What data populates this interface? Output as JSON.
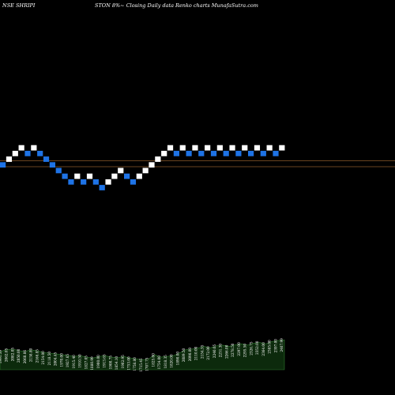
{
  "header": {
    "left": "NSE SHRIPI",
    "right": "STON  8%~  Closing Daily data Renko  charts MunafaSutra.com"
  },
  "colors": {
    "background": "#000000",
    "up_brick": "#ffffff",
    "down_brick": "#1e73e6",
    "reference_line": "#8b5a2b",
    "volume_fill": "#0c2a0c",
    "volume_edge": "#2f7a2f"
  },
  "chart_data": {
    "type": "renko",
    "title": "NSE SHRIPISTON 8%~ Closing Daily data Renko charts MunafaSutra.com",
    "brick_levels": [
      1,
      2,
      3,
      4,
      3,
      4,
      3,
      2,
      1,
      0,
      -1,
      -2,
      -1,
      -2,
      -1,
      -2,
      -3,
      -2,
      -1,
      0,
      -1,
      -2,
      -1,
      0,
      1,
      2,
      3,
      4,
      3,
      4,
      3,
      4,
      3,
      4,
      3,
      4,
      3,
      4,
      3,
      4,
      3,
      4,
      3,
      4,
      3,
      4
    ],
    "brick_directions": [
      "down",
      "up",
      "up",
      "up",
      "down",
      "up",
      "down",
      "down",
      "down",
      "down",
      "down",
      "down",
      "up",
      "down",
      "up",
      "down",
      "down",
      "up",
      "up",
      "up",
      "down",
      "down",
      "up",
      "up",
      "up",
      "up",
      "up",
      "up",
      "down",
      "up",
      "down",
      "up",
      "down",
      "up",
      "down",
      "up",
      "down",
      "up",
      "down",
      "up",
      "down",
      "up",
      "down",
      "up",
      "down",
      "up"
    ],
    "reference_lines": [
      203,
      211
    ],
    "volume_labels": [
      "1991.39",
      "2062.05",
      "2082.05",
      "2050.00",
      "2060.06",
      "2158.80",
      "2166.85",
      "2154.00",
      "2118.50",
      "2004.45",
      "1970.00",
      "1927.65",
      "1915.40",
      "1910.50",
      "1827.05",
      "1880.99",
      "1900.00",
      "1913.65",
      "1900.75",
      "1854.10",
      "1902.95",
      "1753.00",
      "1758.80",
      "1715.45",
      "1707.75",
      "1825.00",
      "1754.00",
      "1818.35",
      "1820.00",
      "1890.00",
      "2089.50",
      "2090.00",
      "2110.00",
      "2154.55",
      "2172.00",
      "2240.05",
      "2251.30",
      "2266.00",
      "2278.50",
      "2297.00",
      "2295.50",
      "2326.75",
      "2352.00",
      "2364.00",
      "2385.00",
      "2397.00",
      "2407.99"
    ],
    "volume_series": [
      0.55,
      0.6,
      0.62,
      0.58,
      0.55,
      0.6,
      0.57,
      0.52,
      0.5,
      0.48,
      0.45,
      0.43,
      0.4,
      0.42,
      0.38,
      0.35,
      0.4,
      0.42,
      0.38,
      0.36,
      0.4,
      0.35,
      0.33,
      0.3,
      0.32,
      0.45,
      0.38,
      0.4,
      0.42,
      0.5,
      0.6,
      0.62,
      0.65,
      0.7,
      0.66,
      0.72,
      0.74,
      0.7,
      0.75,
      0.78,
      0.74,
      0.8,
      0.82,
      0.78,
      0.85,
      0.88,
      0.9
    ]
  }
}
